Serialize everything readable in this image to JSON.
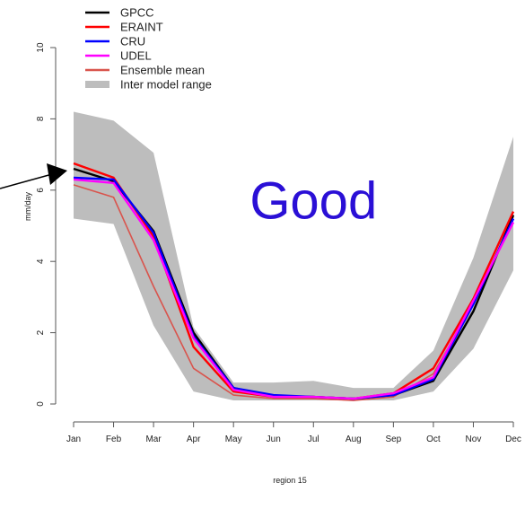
{
  "chart_data": {
    "type": "line",
    "categories": [
      "Jan",
      "Feb",
      "Mar",
      "Apr",
      "May",
      "Jun",
      "Jul",
      "Aug",
      "Sep",
      "Oct",
      "Nov",
      "Dec"
    ],
    "ylabel": "mm/day",
    "xlabel": "region 15",
    "ylim": [
      0,
      10
    ],
    "y_ticks": [
      "0",
      "2",
      "4",
      "6",
      "8",
      "10"
    ],
    "grid": false,
    "legend_position": "top-left",
    "series": [
      {
        "name": "GPCC",
        "color": "#000000",
        "values": [
          6.6,
          6.25,
          4.85,
          2.0,
          0.45,
          0.2,
          0.2,
          0.15,
          0.25,
          0.65,
          2.6,
          5.3
        ]
      },
      {
        "name": "ERAINT",
        "color": "#ff0000",
        "values": [
          6.75,
          6.35,
          4.7,
          1.6,
          0.35,
          0.2,
          0.2,
          0.15,
          0.3,
          1.0,
          2.95,
          5.4
        ]
      },
      {
        "name": "CRU",
        "color": "#0000ff",
        "values": [
          6.35,
          6.3,
          4.8,
          1.9,
          0.45,
          0.25,
          0.2,
          0.15,
          0.25,
          0.7,
          2.8,
          5.2
        ]
      },
      {
        "name": "UDEL",
        "color": "#ff00ff",
        "values": [
          6.3,
          6.2,
          4.6,
          1.85,
          0.4,
          0.2,
          0.2,
          0.15,
          0.3,
          0.75,
          2.9,
          5.1
        ]
      },
      {
        "name": "Ensemble mean",
        "color": "#d9544d",
        "values": [
          6.15,
          5.8,
          3.3,
          1.0,
          0.25,
          0.15,
          0.15,
          0.1,
          0.2,
          0.85,
          2.8,
          5.25
        ]
      }
    ],
    "range_band": {
      "name": "Inter model range",
      "color": "#bdbdbd",
      "upper": [
        8.2,
        7.95,
        7.05,
        2.15,
        0.6,
        0.6,
        0.65,
        0.45,
        0.45,
        1.5,
        4.1,
        7.5
      ],
      "lower": [
        5.2,
        5.05,
        2.2,
        0.35,
        0.1,
        0.1,
        0.1,
        0.1,
        0.1,
        0.35,
        1.55,
        3.75
      ]
    },
    "annotation": {
      "text": "Good",
      "color": "#2a0fd6",
      "x_month": "Jul",
      "y_value": 5.7
    }
  }
}
